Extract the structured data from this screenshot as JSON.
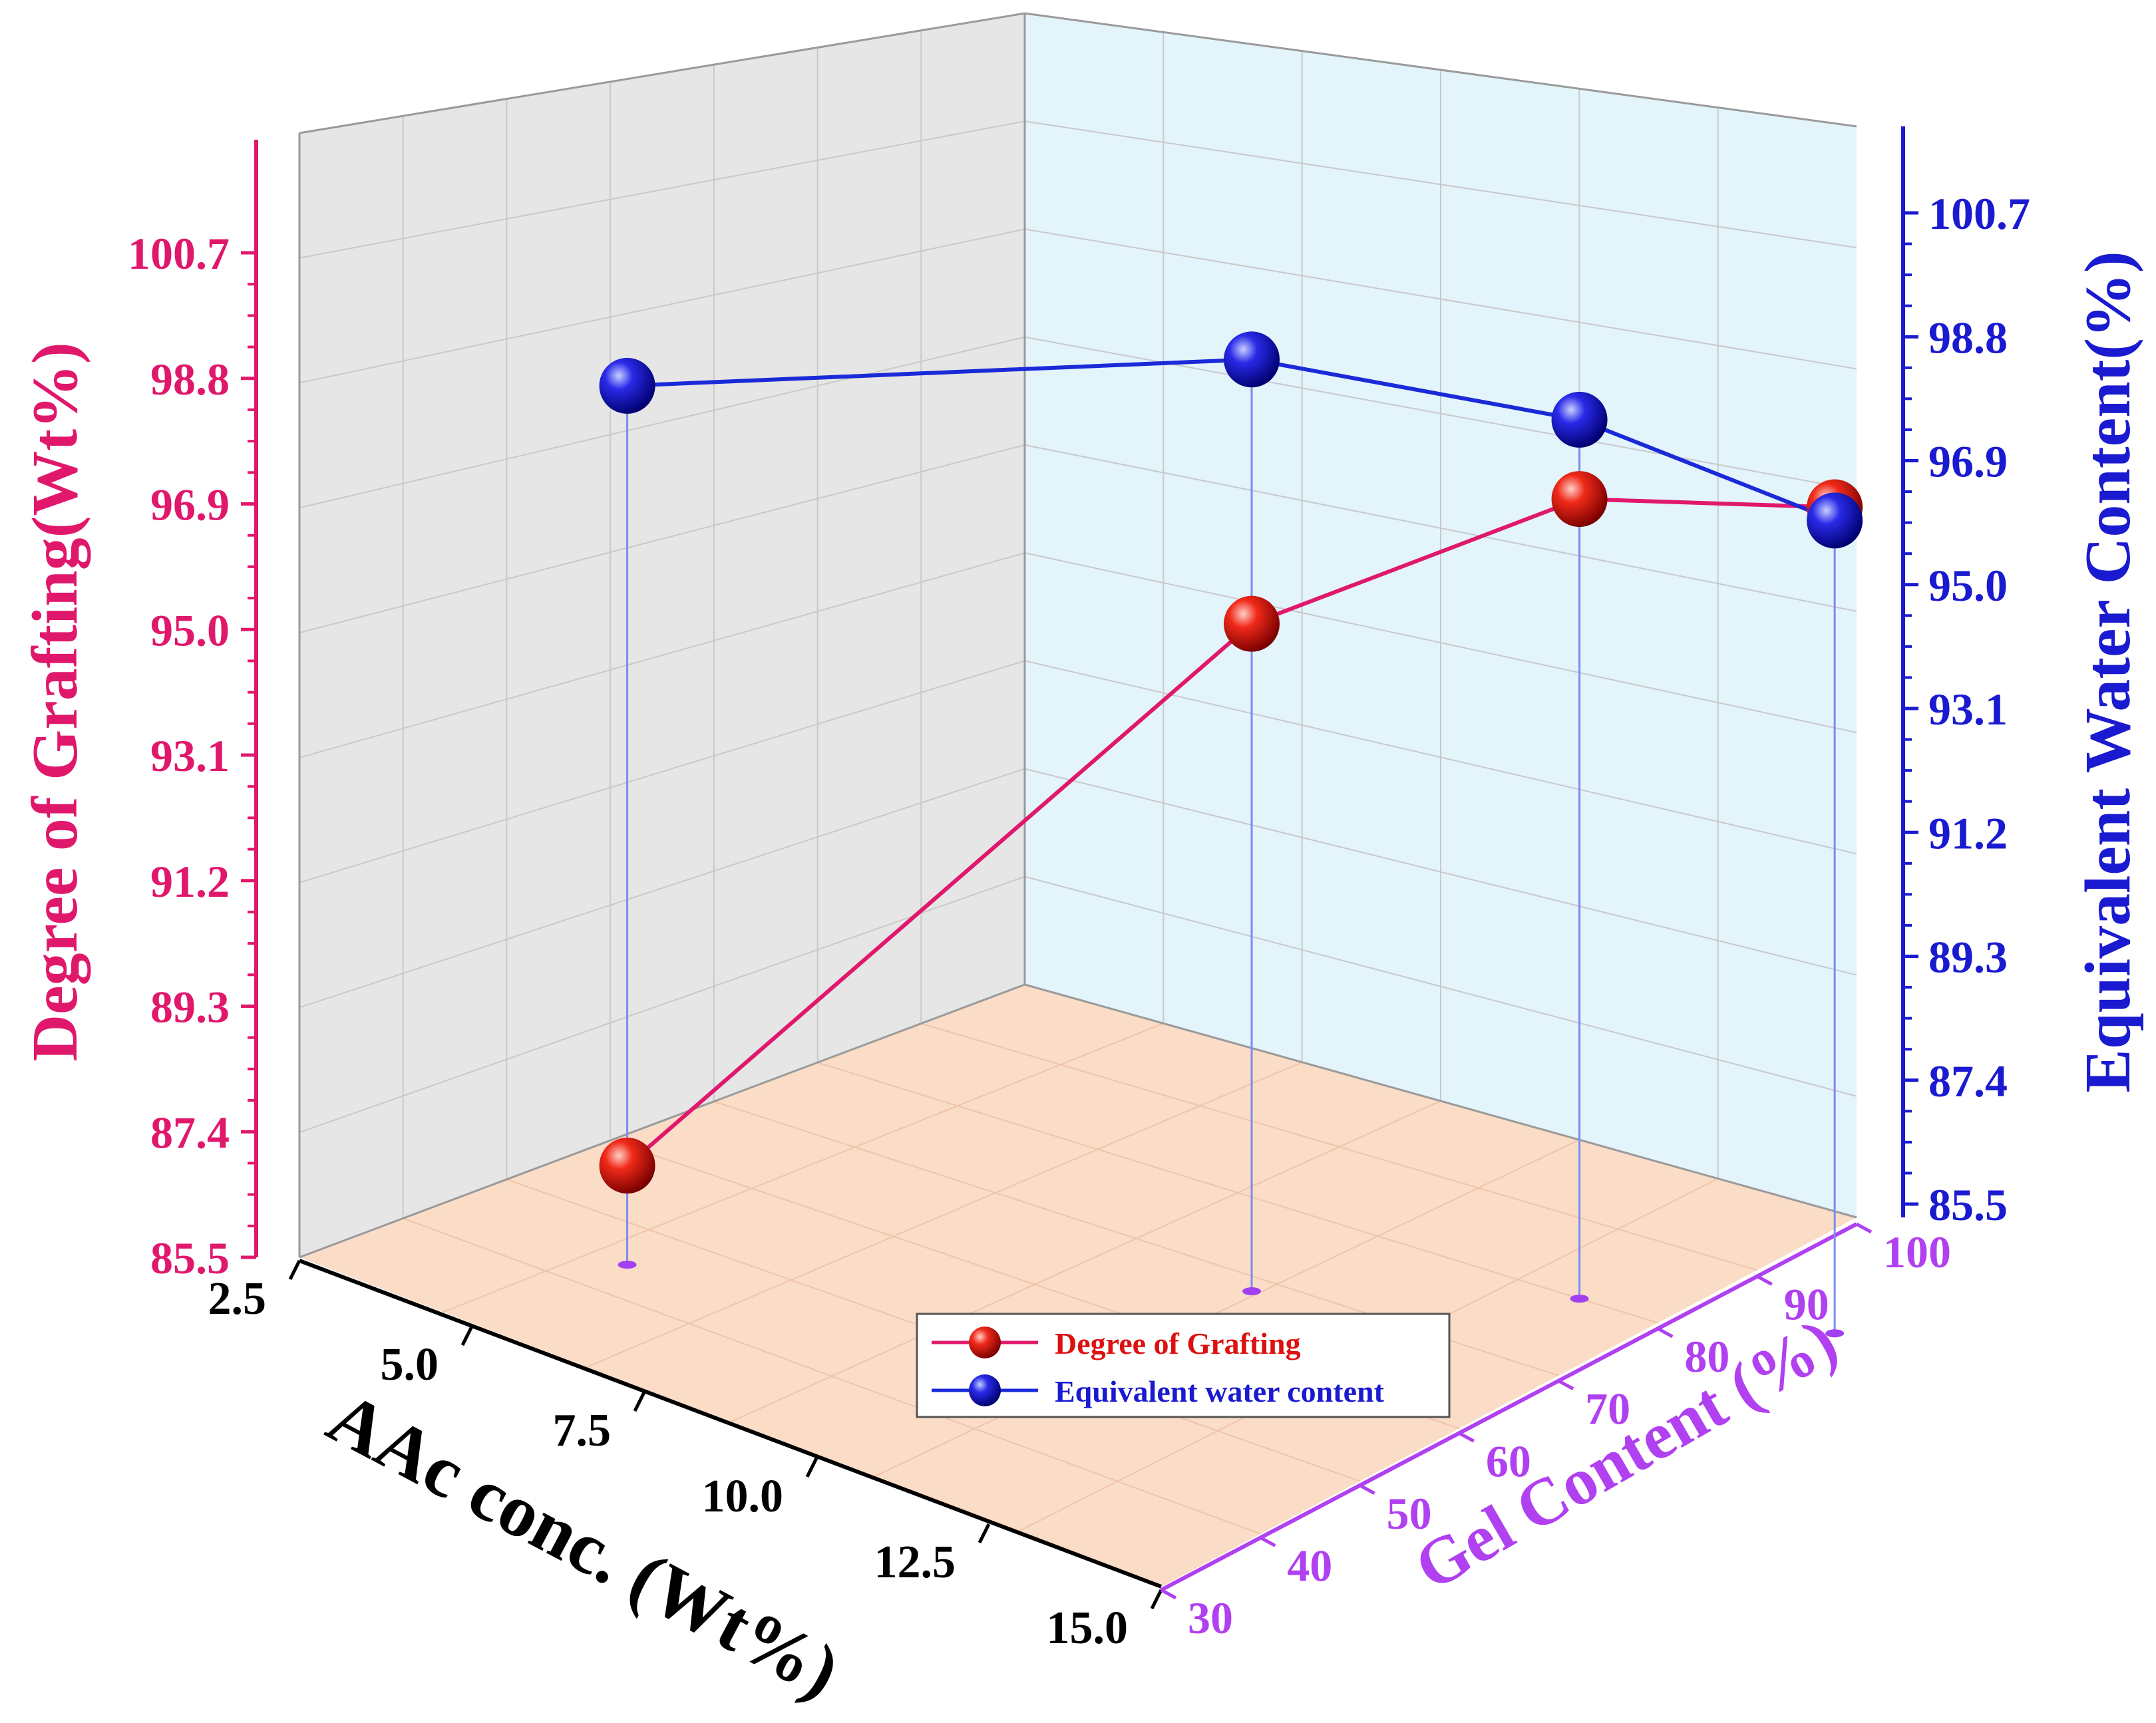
{
  "chart_data": {
    "type": "line",
    "subtype": "3d-scatter-line",
    "x_axis": {
      "label": "AAc conc. (Wt%)",
      "ticks": [
        "2.5",
        "5.0",
        "7.5",
        "10.0",
        "12.5",
        "15.0"
      ],
      "range": [
        2.5,
        15.0
      ]
    },
    "depth_axis": {
      "label": "Gel Content (%)",
      "ticks": [
        "30",
        "40",
        "50",
        "60",
        "70",
        "80",
        "90",
        "100"
      ],
      "range": [
        30,
        100
      ]
    },
    "y_left_axis": {
      "label": "Degree of Grafting(Wt%)",
      "ticks": [
        "85.5",
        "87.4",
        "89.3",
        "91.2",
        "93.1",
        "95.0",
        "96.9",
        "98.8",
        "100.7"
      ],
      "range": [
        85.5,
        100.7
      ]
    },
    "y_right_axis": {
      "label": "Equivalent Water Content(%)",
      "ticks": [
        "85.5",
        "87.4",
        "89.3",
        "91.2",
        "93.1",
        "95.0",
        "96.9",
        "98.8",
        "100.7"
      ],
      "range": [
        85.5,
        100.7
      ]
    },
    "legend": {
      "position": "bottom-center",
      "entries": [
        "Degree of Grafting",
        "Equivalent water content"
      ]
    },
    "series": [
      {
        "name": "Degree of Grafting",
        "color": "#e0186c",
        "marker_color": "#dd1111",
        "x": [
          5.0,
          10.0,
          12.5,
          15.0
        ],
        "gel_content": [
          45,
          72,
          87,
          95
        ],
        "values": [
          87.0,
          95.6,
          97.6,
          98.0
        ]
      },
      {
        "name": "Equivalent water content",
        "color": "#1a2ad8",
        "marker_color": "#1a1ad0",
        "x": [
          5.0,
          10.0,
          12.5,
          15.0
        ],
        "gel_content": [
          45,
          72,
          87,
          95
        ],
        "values": [
          98.8,
          99.6,
          98.8,
          97.8
        ]
      }
    ],
    "colors": {
      "left_axis": "#e0186c",
      "right_axis": "#1a1ad0",
      "x_axis": "#000000",
      "depth_axis": "#b040f0",
      "back_wall": "#e6e6e6",
      "right_wall": "#e3f4fb",
      "floor": "#fbdcc6"
    }
  }
}
